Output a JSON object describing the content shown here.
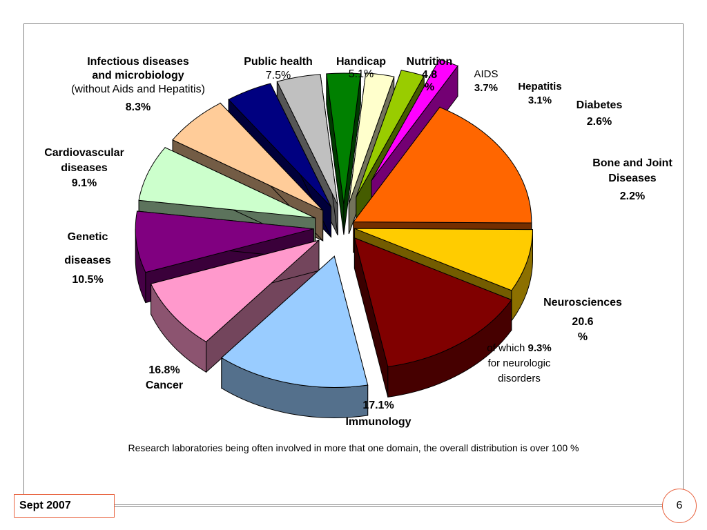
{
  "chart_data": {
    "type": "pie",
    "title": "",
    "slices": [
      {
        "label": "Neurosciences",
        "value": 20.6,
        "value_text": "20.6\n%",
        "color": "#ff6600",
        "note": [
          "of which ",
          "9.3%",
          "for neurologic",
          "disorders"
        ]
      },
      {
        "label": "",
        "value": 9.3,
        "color": "#ffcc00"
      },
      {
        "label": "Immunology",
        "value": 17.1,
        "value_text": "17.1%",
        "color": "#800000"
      },
      {
        "label": "Cancer",
        "value": 16.8,
        "value_text": "16.8%",
        "color": "#99ccff"
      },
      {
        "label": "Genetic\ndiseases",
        "value": 10.5,
        "value_text": "10.5%",
        "color": "#ff99cc"
      },
      {
        "label": "Cardiovascular\ndiseases",
        "value": 9.1,
        "value_text": "9.1%",
        "color": "#800080"
      },
      {
        "label": "Infectious diseases\nand microbiology",
        "sublabel": "(without Aids and Hepatitis)",
        "value": 8.3,
        "value_text": "8.3%",
        "color": "#ccffcc"
      },
      {
        "label": "Public health",
        "value": 7.5,
        "value_text": "7.5%",
        "color": "#ffcc99"
      },
      {
        "label": "Handicap",
        "value": 5.1,
        "value_text": "5.1%",
        "color": "#000080"
      },
      {
        "label": "Nutrition",
        "value": 4.8,
        "value_text": "4.8\n%",
        "color": "#c0c0c0"
      },
      {
        "label": "AIDS",
        "value": 3.7,
        "value_text": "3.7%",
        "color": "#008000"
      },
      {
        "label": "Hepatitis",
        "value": 3.1,
        "value_text": "3.1%",
        "color": "#ffffcc"
      },
      {
        "label": "Diabetes",
        "value": 2.6,
        "value_text": "2.6%",
        "color": "#99cc00"
      },
      {
        "label": "Bone and Joint\nDiseases",
        "value": 2.2,
        "value_text": "2.2%",
        "color": "#ff00ff"
      }
    ],
    "legend": "none"
  },
  "footnote": "Research laboratories being often involved in more that one domain, the overall distribution is over 100 %",
  "footer": {
    "date": "Sept 2007",
    "page": "6"
  }
}
